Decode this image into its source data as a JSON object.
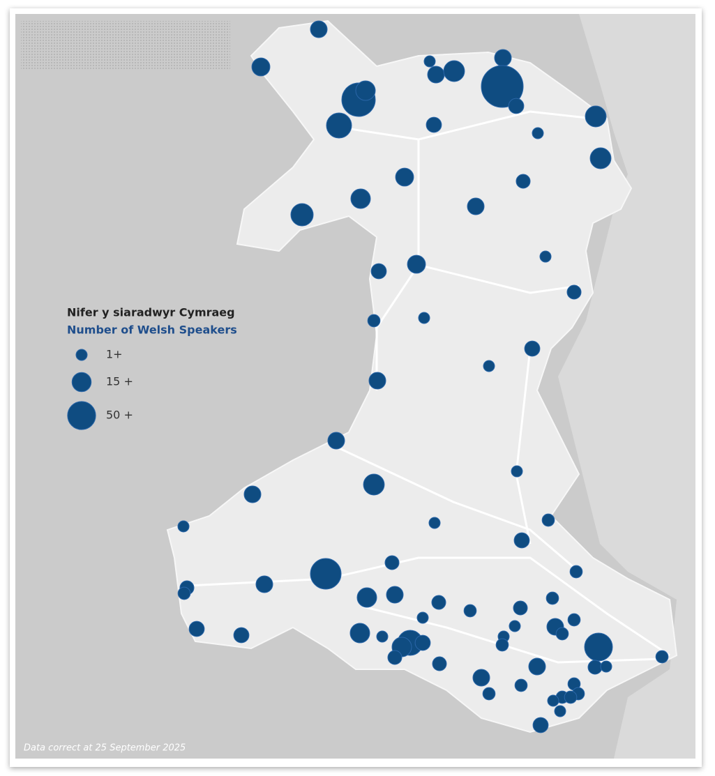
{
  "legend": {
    "title": "Nifer y siaradwyr Cymraeg",
    "subtitle": "Number of Welsh Speakers",
    "items": [
      {
        "value": 1,
        "label": "1+"
      },
      {
        "value": 15,
        "label": "15 +"
      },
      {
        "value": 50,
        "label": "50 +"
      }
    ]
  },
  "markers": {
    "color": "#0f4c81",
    "values": [
      9,
      12,
      1,
      9,
      20,
      9,
      144,
      6,
      81,
      16,
      36,
      6,
      20,
      1,
      20,
      12,
      4,
      16,
      9,
      25,
      1,
      12,
      6,
      4,
      2,
      1,
      6,
      1,
      9,
      9,
      1,
      20,
      9,
      1,
      1,
      2,
      6,
      64,
      4,
      9,
      4,
      2,
      16,
      9,
      2,
      4,
      2,
      2,
      4,
      1,
      2,
      6,
      6,
      16,
      1,
      1,
      9,
      2,
      1,
      2,
      49,
      36,
      16,
      6,
      4,
      2,
      4,
      1,
      4,
      9,
      9,
      2,
      2,
      2,
      2,
      2,
      2,
      1,
      1,
      6
    ]
  },
  "footnote": "Data correct at 25 September 2025"
}
